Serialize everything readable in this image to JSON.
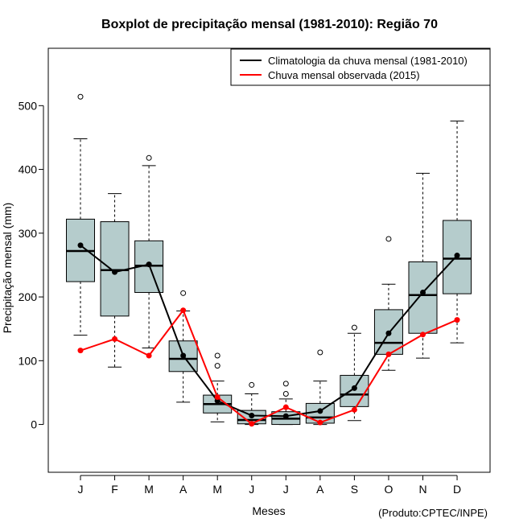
{
  "chart_data": {
    "type": "boxplot",
    "title": "Boxplot de precipitação mensal (1981-2010): Região 70",
    "xlabel": "Meses",
    "ylabel": "Precipitação mensal (mm)",
    "credit": "(Produto:CPTEC/INPE)",
    "ylim": [
      -75,
      590
    ],
    "yticks": [
      0,
      100,
      200,
      300,
      400,
      500
    ],
    "ytick_labels": [
      "0",
      "100",
      "200",
      "300",
      "400",
      "500"
    ],
    "categories": [
      "J",
      "F",
      "M",
      "A",
      "M",
      "J",
      "J",
      "A",
      "S",
      "O",
      "N",
      "D"
    ],
    "boxes": [
      {
        "whisker_low": 140,
        "q1": 224,
        "median": 272,
        "q3": 322,
        "whisker_high": 448,
        "outliers": [
          514
        ]
      },
      {
        "whisker_low": 90,
        "q1": 170,
        "median": 242,
        "q3": 318,
        "whisker_high": 362,
        "outliers": []
      },
      {
        "whisker_low": 120,
        "q1": 207,
        "median": 249,
        "q3": 288,
        "whisker_high": 406,
        "outliers": [
          418
        ]
      },
      {
        "whisker_low": 35,
        "q1": 83,
        "median": 103,
        "q3": 131,
        "whisker_high": 178,
        "outliers": [
          206
        ]
      },
      {
        "whisker_low": 4,
        "q1": 18,
        "median": 32,
        "q3": 46,
        "whisker_high": 68,
        "outliers": [
          108,
          92
        ]
      },
      {
        "whisker_low": 0,
        "q1": 1,
        "median": 7,
        "q3": 22,
        "whisker_high": 48,
        "outliers": [
          62
        ]
      },
      {
        "whisker_low": 0,
        "q1": 0,
        "median": 9,
        "q3": 20,
        "whisker_high": 40,
        "outliers": [
          64,
          48
        ]
      },
      {
        "whisker_low": 0,
        "q1": 2,
        "median": 11,
        "q3": 33,
        "whisker_high": 68,
        "outliers": [
          113
        ]
      },
      {
        "whisker_low": 6,
        "q1": 28,
        "median": 47,
        "q3": 77,
        "whisker_high": 143,
        "outliers": [
          152
        ]
      },
      {
        "whisker_low": 85,
        "q1": 110,
        "median": 128,
        "q3": 180,
        "whisker_high": 220,
        "outliers": [
          291
        ]
      },
      {
        "whisker_low": 104,
        "q1": 143,
        "median": 203,
        "q3": 255,
        "whisker_high": 394,
        "outliers": []
      },
      {
        "whisker_low": 128,
        "q1": 205,
        "median": 260,
        "q3": 320,
        "whisker_high": 476,
        "outliers": []
      }
    ],
    "series": [
      {
        "name": "Climatologia da chuva mensal (1981-2010)",
        "color": "#000000",
        "values": [
          281,
          239,
          251,
          108,
          37,
          14,
          13,
          21,
          57,
          143,
          207,
          265
        ]
      },
      {
        "name": "Chuva mensal observada (2015)",
        "color": "#ff0000",
        "values": [
          116,
          134,
          108,
          179,
          43,
          1,
          27,
          3,
          23,
          110,
          141,
          164
        ]
      }
    ],
    "box_fill": "#b5cccc",
    "legend_position": "top-right"
  }
}
